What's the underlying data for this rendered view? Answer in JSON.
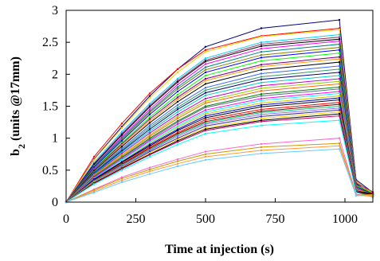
{
  "chart_data": {
    "type": "line",
    "title": "",
    "xlabel": "Time at injection (s)",
    "ylabel": "b2 (units @17mm)",
    "ylabel_main": "b",
    "ylabel_sub": "2",
    "ylabel_rest": " (units @17mm)",
    "xlim": [
      0,
      1100
    ],
    "ylim": [
      0,
      3
    ],
    "x_ticks": [
      0,
      250,
      500,
      750,
      1000
    ],
    "x_tick_labels": [
      "0",
      "250",
      "500",
      "750",
      "1000"
    ],
    "y_ticks": [
      0,
      0.5,
      1,
      1.5,
      2,
      2.5,
      3
    ],
    "y_tick_labels": [
      "0",
      "0.5",
      "1",
      "1.5",
      "2",
      "2.5",
      "3"
    ],
    "grid": false,
    "legend": "none",
    "series": [
      {
        "color": "#000080",
        "values": [
          0,
          0.67,
          1.18,
          1.66,
          2.08,
          2.43,
          2.72,
          2.85,
          0.35,
          0.15
        ]
      },
      {
        "color": "#ff0000",
        "values": [
          0,
          0.71,
          1.23,
          1.7,
          2.08,
          2.38,
          2.6,
          2.72,
          0.33,
          0.12
        ]
      },
      {
        "color": "#ffcc00",
        "values": [
          0,
          0.66,
          1.16,
          1.63,
          2.03,
          2.35,
          2.59,
          2.7,
          0.32,
          0.14
        ]
      },
      {
        "color": "#00ccff",
        "values": [
          0,
          0.62,
          1.1,
          1.54,
          1.93,
          2.25,
          2.5,
          2.62,
          0.3,
          0.1
        ]
      },
      {
        "color": "#993366",
        "values": [
          0,
          0.6,
          1.07,
          1.51,
          1.9,
          2.22,
          2.47,
          2.58,
          0.3,
          0.16
        ]
      },
      {
        "color": "#000000",
        "values": [
          0,
          0.59,
          1.05,
          1.49,
          1.88,
          2.2,
          2.44,
          2.55,
          0.29,
          0.11
        ]
      },
      {
        "color": "#ff00ff",
        "values": [
          0,
          0.57,
          1.02,
          1.45,
          1.84,
          2.16,
          2.4,
          2.52,
          0.28,
          0.13
        ]
      },
      {
        "color": "#008080",
        "values": [
          0,
          0.56,
          1.0,
          1.42,
          1.8,
          2.11,
          2.35,
          2.47,
          0.28,
          0.09
        ]
      },
      {
        "color": "#808000",
        "values": [
          0,
          0.55,
          0.98,
          1.4,
          1.77,
          2.07,
          2.3,
          2.42,
          0.27,
          0.12
        ]
      },
      {
        "color": "#0000ff",
        "values": [
          0,
          0.54,
          0.96,
          1.37,
          1.73,
          2.03,
          2.26,
          2.38,
          0.27,
          0.1
        ]
      },
      {
        "color": "#00ff00",
        "values": [
          0,
          0.52,
          0.93,
          1.33,
          1.68,
          1.98,
          2.21,
          2.33,
          0.26,
          0.14
        ]
      },
      {
        "color": "#800080",
        "values": [
          0,
          0.51,
          0.91,
          1.3,
          1.64,
          1.93,
          2.15,
          2.27,
          0.25,
          0.11
        ]
      },
      {
        "color": "#ff9900",
        "values": [
          0,
          0.5,
          0.89,
          1.27,
          1.61,
          1.9,
          2.12,
          2.24,
          0.25,
          0.09
        ]
      },
      {
        "color": "#000000",
        "values": [
          0,
          0.49,
          0.87,
          1.24,
          1.57,
          1.85,
          2.07,
          2.19,
          0.24,
          0.13
        ]
      },
      {
        "color": "#3366ff",
        "values": [
          0,
          0.47,
          0.84,
          1.2,
          1.52,
          1.79,
          2.01,
          2.13,
          0.24,
          0.1
        ]
      },
      {
        "color": "#339966",
        "values": [
          0,
          0.46,
          0.82,
          1.17,
          1.48,
          1.75,
          1.96,
          2.08,
          0.23,
          0.12
        ]
      },
      {
        "color": "#000080",
        "values": [
          0,
          0.45,
          0.8,
          1.14,
          1.45,
          1.71,
          1.92,
          2.03,
          0.23,
          0.08
        ]
      },
      {
        "color": "#00cccc",
        "values": [
          0,
          0.44,
          0.78,
          1.11,
          1.41,
          1.67,
          1.87,
          1.98,
          0.22,
          0.11
        ]
      },
      {
        "color": "#cc00cc",
        "values": [
          0,
          0.43,
          0.76,
          1.08,
          1.37,
          1.62,
          1.82,
          1.93,
          0.22,
          0.13
        ]
      },
      {
        "color": "#99cc00",
        "values": [
          0,
          0.42,
          0.74,
          1.05,
          1.34,
          1.58,
          1.78,
          1.89,
          0.21,
          0.09
        ]
      },
      {
        "color": "#ff6600",
        "values": [
          0,
          0.41,
          0.72,
          1.03,
          1.31,
          1.55,
          1.74,
          1.85,
          0.21,
          0.12
        ]
      },
      {
        "color": "#008000",
        "values": [
          0,
          0.4,
          0.7,
          1.0,
          1.27,
          1.5,
          1.69,
          1.8,
          0.2,
          0.1
        ]
      },
      {
        "color": "#666699",
        "values": [
          0,
          0.39,
          0.69,
          0.98,
          1.25,
          1.48,
          1.66,
          1.77,
          0.2,
          0.14
        ]
      },
      {
        "color": "#ff00ff",
        "values": [
          0,
          0.38,
          0.67,
          0.96,
          1.22,
          1.44,
          1.62,
          1.73,
          0.19,
          0.08
        ]
      },
      {
        "color": "#00ffff",
        "values": [
          0,
          0.37,
          0.66,
          0.94,
          1.19,
          1.41,
          1.59,
          1.7,
          0.19,
          0.11
        ]
      },
      {
        "color": "#cccc00",
        "values": [
          0,
          0.36,
          0.64,
          0.92,
          1.17,
          1.38,
          1.55,
          1.66,
          0.19,
          0.13
        ]
      },
      {
        "color": "#0000ff",
        "values": [
          0,
          0.36,
          0.63,
          0.9,
          1.14,
          1.35,
          1.52,
          1.63,
          0.18,
          0.09
        ]
      },
      {
        "color": "#000000",
        "values": [
          0,
          0.35,
          0.62,
          0.88,
          1.12,
          1.32,
          1.49,
          1.6,
          0.18,
          0.12
        ]
      },
      {
        "color": "#ff0000",
        "values": [
          0,
          0.34,
          0.6,
          0.86,
          1.09,
          1.29,
          1.45,
          1.56,
          0.18,
          0.1
        ]
      },
      {
        "color": "#800000",
        "values": [
          0,
          0.33,
          0.59,
          0.84,
          1.07,
          1.26,
          1.42,
          1.53,
          0.17,
          0.14
        ]
      },
      {
        "color": "#00cc66",
        "values": [
          0,
          0.33,
          0.58,
          0.82,
          1.05,
          1.24,
          1.4,
          1.5,
          0.17,
          0.08
        ]
      },
      {
        "color": "#9966ff",
        "values": [
          0,
          0.32,
          0.57,
          0.81,
          1.03,
          1.22,
          1.37,
          1.47,
          0.17,
          0.11
        ]
      },
      {
        "color": "#333399",
        "values": [
          0,
          0.31,
          0.55,
          0.79,
          1.0,
          1.19,
          1.34,
          1.44,
          0.16,
          0.13
        ]
      },
      {
        "color": "#ffcc00",
        "values": [
          0,
          0.31,
          0.54,
          0.77,
          0.98,
          1.16,
          1.31,
          1.41,
          0.16,
          0.09
        ]
      },
      {
        "color": "#000000",
        "values": [
          0,
          0.3,
          0.53,
          0.75,
          0.96,
          1.14,
          1.28,
          1.38,
          0.16,
          0.12
        ]
      },
      {
        "color": "#cc0066",
        "values": [
          0,
          0.29,
          0.52,
          0.74,
          0.94,
          1.12,
          1.26,
          1.35,
          0.15,
          0.1
        ]
      },
      {
        "color": "#00ffff",
        "values": [
          0,
          0.28,
          0.5,
          0.71,
          0.9,
          1.07,
          1.2,
          1.28,
          0.15,
          0.08
        ]
      },
      {
        "color": "#ff66cc",
        "values": [
          0,
          0.2,
          0.39,
          0.54,
          0.67,
          0.79,
          0.91,
          1.0,
          0.12,
          0.1
        ]
      },
      {
        "color": "#cc9900",
        "values": [
          0,
          0.19,
          0.37,
          0.51,
          0.64,
          0.75,
          0.86,
          0.92,
          0.11,
          0.12
        ]
      },
      {
        "color": "#ff9933",
        "values": [
          0,
          0.17,
          0.34,
          0.48,
          0.6,
          0.71,
          0.81,
          0.88,
          0.11,
          0.09
        ]
      },
      {
        "color": "#66ccff",
        "values": [
          0,
          0.15,
          0.31,
          0.44,
          0.56,
          0.66,
          0.76,
          0.83,
          0.1,
          0.11
        ]
      }
    ],
    "x": [
      0,
      100,
      200,
      300,
      400,
      500,
      700,
      980,
      1040,
      1100
    ]
  }
}
